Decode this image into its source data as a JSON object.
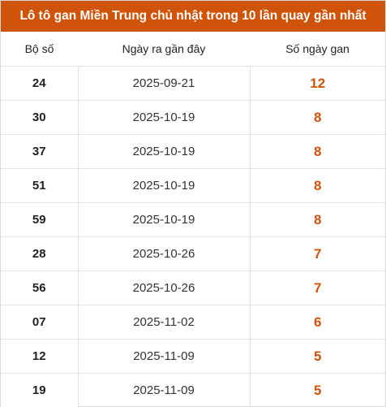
{
  "title": "Lô tô gan Miền Trung chủ nhật trong 10 lần quay gần nhất",
  "headers": {
    "number": "Bộ số",
    "last_date": "Ngày ra gần đây",
    "gan_days": "Số ngày gan"
  },
  "accent_color": "#d0530a",
  "rows": [
    {
      "number": "24",
      "last_date": "2025-09-21",
      "gan_days": "12"
    },
    {
      "number": "30",
      "last_date": "2025-10-19",
      "gan_days": "8"
    },
    {
      "number": "37",
      "last_date": "2025-10-19",
      "gan_days": "8"
    },
    {
      "number": "51",
      "last_date": "2025-10-19",
      "gan_days": "8"
    },
    {
      "number": "59",
      "last_date": "2025-10-19",
      "gan_days": "8"
    },
    {
      "number": "28",
      "last_date": "2025-10-26",
      "gan_days": "7"
    },
    {
      "number": "56",
      "last_date": "2025-10-26",
      "gan_days": "7"
    },
    {
      "number": "07",
      "last_date": "2025-11-02",
      "gan_days": "6"
    },
    {
      "number": "12",
      "last_date": "2025-11-09",
      "gan_days": "5"
    },
    {
      "number": "19",
      "last_date": "2025-11-09",
      "gan_days": "5"
    }
  ]
}
